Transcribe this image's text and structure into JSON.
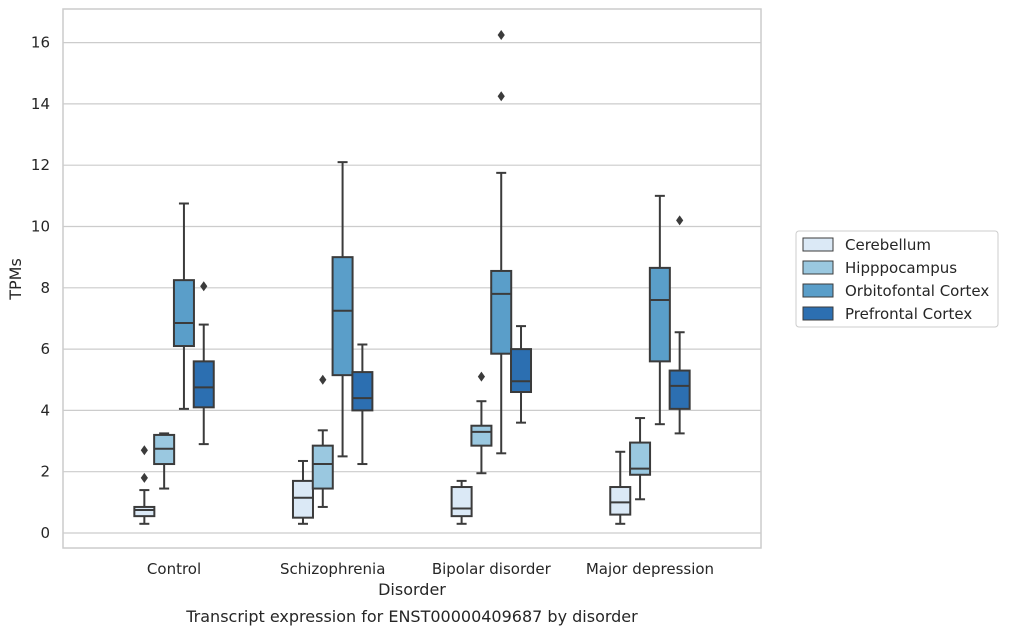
{
  "chart_data": {
    "type": "box",
    "xlabel": "Disorder",
    "ylabel": "TPMs",
    "caption": "Transcript expression for ENST00000409687 by disorder",
    "ylim": [
      -0.5,
      17
    ],
    "yticks": [
      0,
      2,
      4,
      6,
      8,
      10,
      12,
      14,
      16
    ],
    "grid": "horizontal",
    "legend_position": "right",
    "categories": [
      "Control",
      "Schizophrenia",
      "Bipolar disorder",
      "Major depression"
    ],
    "series": [
      {
        "name": "Cerebellum",
        "color": "#dbe9f6",
        "boxes": [
          {
            "whislo": 0.3,
            "q1": 0.55,
            "med": 0.75,
            "q3": 0.85,
            "whishi": 1.4,
            "fliers": [
              1.8,
              2.7
            ]
          },
          {
            "whislo": 0.3,
            "q1": 0.5,
            "med": 1.15,
            "q3": 1.7,
            "whishi": 2.35,
            "fliers": []
          },
          {
            "whislo": 0.3,
            "q1": 0.55,
            "med": 0.8,
            "q3": 1.5,
            "whishi": 1.7,
            "fliers": []
          },
          {
            "whislo": 0.3,
            "q1": 0.6,
            "med": 1.0,
            "q3": 1.5,
            "whishi": 2.65,
            "fliers": []
          }
        ]
      },
      {
        "name": "Hipppocampus",
        "color": "#9ac8e0",
        "boxes": [
          {
            "whislo": 1.45,
            "q1": 2.25,
            "med": 2.75,
            "q3": 3.2,
            "whishi": 3.25,
            "fliers": []
          },
          {
            "whislo": 0.85,
            "q1": 1.45,
            "med": 2.25,
            "q3": 2.85,
            "whishi": 3.35,
            "fliers": [
              5.0
            ]
          },
          {
            "whislo": 1.95,
            "q1": 2.85,
            "med": 3.3,
            "q3": 3.5,
            "whishi": 4.3,
            "fliers": [
              5.1
            ]
          },
          {
            "whislo": 1.1,
            "q1": 1.9,
            "med": 2.1,
            "q3": 2.95,
            "whishi": 3.75,
            "fliers": []
          }
        ]
      },
      {
        "name": "Orbitofontal Cortex",
        "color": "#5a9ec9",
        "boxes": [
          {
            "whislo": 4.05,
            "q1": 6.1,
            "med": 6.85,
            "q3": 8.25,
            "whishi": 10.75,
            "fliers": []
          },
          {
            "whislo": 2.5,
            "q1": 5.15,
            "med": 7.25,
            "q3": 9.0,
            "whishi": 12.1,
            "fliers": []
          },
          {
            "whislo": 2.6,
            "q1": 5.85,
            "med": 7.8,
            "q3": 8.55,
            "whishi": 11.75,
            "fliers": [
              16.25,
              14.25
            ]
          },
          {
            "whislo": 3.55,
            "q1": 5.6,
            "med": 7.6,
            "q3": 8.65,
            "whishi": 11.0,
            "fliers": []
          }
        ]
      },
      {
        "name": "Prefrontal Cortex",
        "color": "#2c6fb1",
        "boxes": [
          {
            "whislo": 2.9,
            "q1": 4.1,
            "med": 4.75,
            "q3": 5.6,
            "whishi": 6.8,
            "fliers": [
              8.05
            ]
          },
          {
            "whislo": 2.25,
            "q1": 4.0,
            "med": 4.4,
            "q3": 5.25,
            "whishi": 6.15,
            "fliers": []
          },
          {
            "whislo": 3.6,
            "q1": 4.6,
            "med": 4.95,
            "q3": 6.0,
            "whishi": 6.75,
            "fliers": []
          },
          {
            "whislo": 3.25,
            "q1": 4.05,
            "med": 4.8,
            "q3": 5.3,
            "whishi": 6.55,
            "fliers": [
              10.2
            ]
          }
        ]
      }
    ]
  }
}
